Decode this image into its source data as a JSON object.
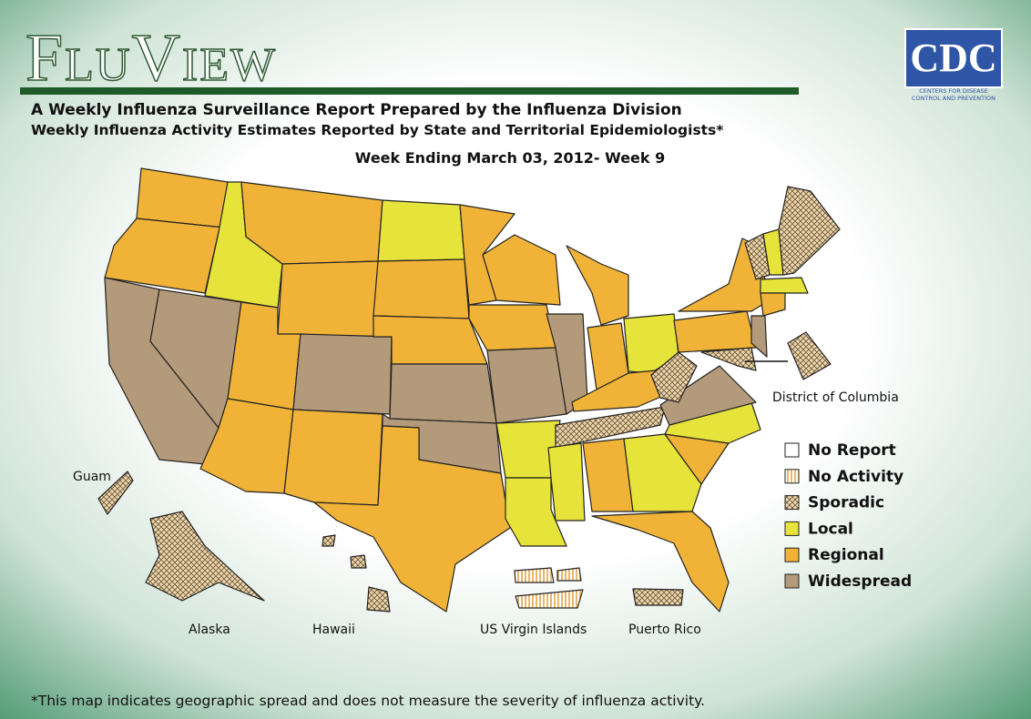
{
  "header": {
    "logo": "FluView",
    "title": "A Weekly Influenza Surveillance Report Prepared by the Influenza Division",
    "subtitle": "Weekly Influenza Activity Estimates Reported by State and Territorial Epidemiologists*",
    "week": "Week Ending March 03, 2012- Week 9"
  },
  "cdc": {
    "name": "CDC",
    "tagline_1": "Centers for Disease",
    "tagline_2": "Control and Prevention"
  },
  "legend": [
    {
      "label": "No Report",
      "color": "#ffffff",
      "pattern": "none"
    },
    {
      "label": "No Activity",
      "color": "#ffffff",
      "pattern": "stripes"
    },
    {
      "label": "Sporadic",
      "color": "#ecd6ae",
      "pattern": "crosshatch"
    },
    {
      "label": "Local",
      "color": "#e6e33a",
      "pattern": "none"
    },
    {
      "label": "Regional",
      "color": "#f0b338",
      "pattern": "none"
    },
    {
      "label": "Widespread",
      "color": "#b39a7a",
      "pattern": "none"
    }
  ],
  "labels": {
    "dc": "District of Columbia",
    "guam": "Guam",
    "alaska": "Alaska",
    "hawaii": "Hawaii",
    "virgin_islands": "US Virgin Islands",
    "puerto_rico": "Puerto Rico"
  },
  "footnote": "*This map indicates geographic spread and does not measure the severity of influenza activity."
}
